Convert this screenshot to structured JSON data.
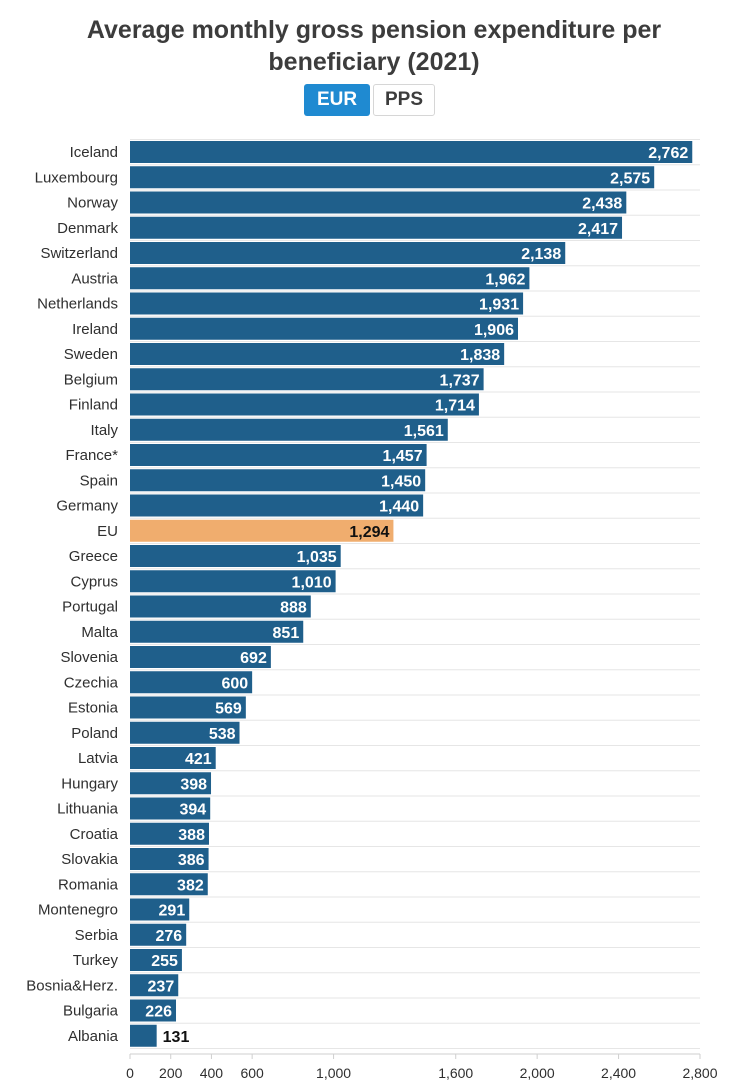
{
  "title_line1": "Average monthly gross pension expenditure per",
  "title_line2": "beneficiary (2021)",
  "toggle": {
    "eur": "EUR",
    "pps": "PPS",
    "selected": "EUR"
  },
  "colors": {
    "bar": "#1f5f8b",
    "highlight": "#f0ad6e",
    "accent": "#1f8ad1"
  },
  "chart_data": {
    "type": "bar",
    "orientation": "horizontal",
    "title": "Average monthly gross pension expenditure per beneficiary (2021)",
    "unit": "EUR",
    "categories": [
      "Iceland",
      "Luxembourg",
      "Norway",
      "Denmark",
      "Switzerland",
      "Austria",
      "Netherlands",
      "Ireland",
      "Sweden",
      "Belgium",
      "Finland",
      "Italy",
      "France*",
      "Spain",
      "Germany",
      "EU",
      "Greece",
      "Cyprus",
      "Portugal",
      "Malta",
      "Slovenia",
      "Czechia",
      "Estonia",
      "Poland",
      "Latvia",
      "Hungary",
      "Lithuania",
      "Croatia",
      "Slovakia",
      "Romania",
      "Montenegro",
      "Serbia",
      "Turkey",
      "Bosnia&Herz.",
      "Bulgaria",
      "Albania"
    ],
    "values": [
      2762,
      2575,
      2438,
      2417,
      2138,
      1962,
      1931,
      1906,
      1838,
      1737,
      1714,
      1561,
      1457,
      1450,
      1440,
      1294,
      1035,
      1010,
      888,
      851,
      692,
      600,
      569,
      538,
      421,
      398,
      394,
      388,
      386,
      382,
      291,
      276,
      255,
      237,
      226,
      131
    ],
    "labels": [
      "2,762",
      "2,575",
      "2,438",
      "2,417",
      "2,138",
      "1,962",
      "1,931",
      "1,906",
      "1,838",
      "1,737",
      "1,714",
      "1,561",
      "1,457",
      "1,450",
      "1,440",
      "1,294",
      "1,035",
      "1,010",
      "888",
      "851",
      "692",
      "600",
      "569",
      "538",
      "421",
      "398",
      "394",
      "388",
      "386",
      "382",
      "291",
      "276",
      "255",
      "237",
      "226",
      "131"
    ],
    "highlight": "EU",
    "xlim": [
      0,
      2800
    ],
    "xticks": [
      0,
      200,
      400,
      600,
      1000,
      1600,
      2000,
      2400,
      2800
    ],
    "xtick_labels": [
      "0",
      "200",
      "400",
      "600",
      "1,000",
      "1,600",
      "2,000",
      "2,400",
      "2,800"
    ],
    "grid": true
  }
}
